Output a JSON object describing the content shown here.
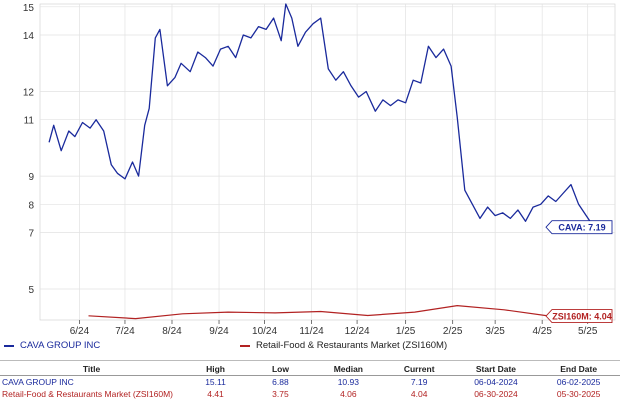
{
  "chart_data": {
    "type": "line",
    "y_ticks": [
      "15",
      "14",
      "12",
      "11",
      "9",
      "8",
      "7",
      "5"
    ],
    "y_tick_values": [
      15,
      14,
      12,
      11,
      9,
      8,
      7,
      5
    ],
    "ylim": [
      3.9,
      15.1
    ],
    "x_tick_labels": [
      "6/24",
      "7/24",
      "8/24",
      "9/24",
      "10/24",
      "11/24",
      "12/24",
      "1/25",
      "2/25",
      "3/25",
      "4/25",
      "5/25"
    ],
    "x_tick_values": [
      "2024-06-24",
      "2024-07-24",
      "2024-08-24",
      "2024-09-24",
      "2024-10-24",
      "2024-11-24",
      "2024-12-24",
      "2025-01-25",
      "2025-02-25",
      "2025-03-25",
      "2025-04-25",
      "2025-05-25"
    ],
    "grid": true,
    "series": [
      {
        "name": "CAVA GROUP INC",
        "color": "#1a2a9c",
        "end_label": "CAVA: 7.19",
        "x": [
          "2024-06-04",
          "2024-06-07",
          "2024-06-12",
          "2024-06-17",
          "2024-06-21",
          "2024-06-26",
          "2024-07-01",
          "2024-07-05",
          "2024-07-10",
          "2024-07-15",
          "2024-07-19",
          "2024-07-24",
          "2024-07-29",
          "2024-08-02",
          "2024-08-06",
          "2024-08-09",
          "2024-08-13",
          "2024-08-16",
          "2024-08-21",
          "2024-08-26",
          "2024-08-30",
          "2024-09-05",
          "2024-09-10",
          "2024-09-15",
          "2024-09-20",
          "2024-09-25",
          "2024-09-30",
          "2024-10-05",
          "2024-10-10",
          "2024-10-15",
          "2024-10-20",
          "2024-10-25",
          "2024-10-30",
          "2024-11-04",
          "2024-11-07",
          "2024-11-11",
          "2024-11-15",
          "2024-11-20",
          "2024-11-25",
          "2024-11-30",
          "2024-12-05",
          "2024-12-10",
          "2024-12-15",
          "2024-12-20",
          "2024-12-25",
          "2024-12-30",
          "2025-01-05",
          "2025-01-10",
          "2025-01-15",
          "2025-01-20",
          "2025-01-25",
          "2025-01-30",
          "2025-02-04",
          "2025-02-09",
          "2025-02-14",
          "2025-02-19",
          "2025-02-24",
          "2025-02-28",
          "2025-03-05",
          "2025-03-10",
          "2025-03-15",
          "2025-03-20",
          "2025-03-25",
          "2025-03-30",
          "2025-04-04",
          "2025-04-09",
          "2025-04-14",
          "2025-04-19",
          "2025-04-24",
          "2025-04-29",
          "2025-05-04",
          "2025-05-09",
          "2025-05-14",
          "2025-05-19",
          "2025-05-24",
          "2025-05-29",
          "2025-06-02"
        ],
        "y": [
          10.2,
          10.8,
          9.9,
          10.6,
          10.4,
          10.9,
          10.7,
          11.0,
          10.6,
          9.4,
          9.1,
          8.9,
          9.5,
          9.0,
          10.8,
          11.4,
          13.9,
          14.2,
          12.2,
          12.5,
          13.0,
          12.7,
          13.4,
          13.2,
          12.9,
          13.5,
          13.6,
          13.2,
          14.0,
          13.9,
          14.3,
          14.2,
          14.6,
          13.8,
          15.1,
          14.6,
          13.6,
          14.1,
          14.4,
          14.6,
          12.8,
          12.4,
          12.7,
          12.2,
          11.8,
          12.0,
          11.3,
          11.7,
          11.5,
          11.7,
          11.6,
          12.4,
          12.3,
          13.6,
          13.2,
          13.5,
          12.9,
          11.1,
          8.5,
          8.0,
          7.5,
          7.9,
          7.6,
          7.7,
          7.5,
          7.8,
          7.4,
          7.9,
          8.0,
          8.3,
          8.1,
          8.4,
          8.7,
          8.0,
          7.6,
          7.2,
          7.19
        ]
      },
      {
        "name": "Retail-Food & Restaurants Market (ZSI160M)",
        "color": "#b22222",
        "end_label": "ZSI160M: 4.04",
        "x": [
          "2024-06-30",
          "2024-07-31",
          "2024-08-31",
          "2024-09-30",
          "2024-10-31",
          "2024-11-30",
          "2024-12-31",
          "2025-01-31",
          "2025-02-28",
          "2025-03-31",
          "2025-04-30",
          "2025-05-30"
        ],
        "y": [
          4.05,
          3.95,
          4.12,
          4.18,
          4.15,
          4.2,
          4.06,
          4.18,
          4.41,
          4.26,
          4.04,
          4.04
        ]
      }
    ]
  },
  "legend": {
    "cava": "CAVA GROUP INC",
    "zsi": "Retail-Food & Restaurants Market (ZSI160M)"
  },
  "table": {
    "headers": [
      "Title",
      "High",
      "Low",
      "Median",
      "Current",
      "Start Date",
      "End Date"
    ],
    "rows": [
      [
        "CAVA GROUP INC",
        "15.11",
        "6.88",
        "10.93",
        "7.19",
        "06-04-2024",
        "06-02-2025"
      ],
      [
        "Retail-Food & Restaurants Market (ZSI160M)",
        "4.41",
        "3.75",
        "4.06",
        "4.04",
        "06-30-2024",
        "05-30-2025"
      ]
    ]
  }
}
